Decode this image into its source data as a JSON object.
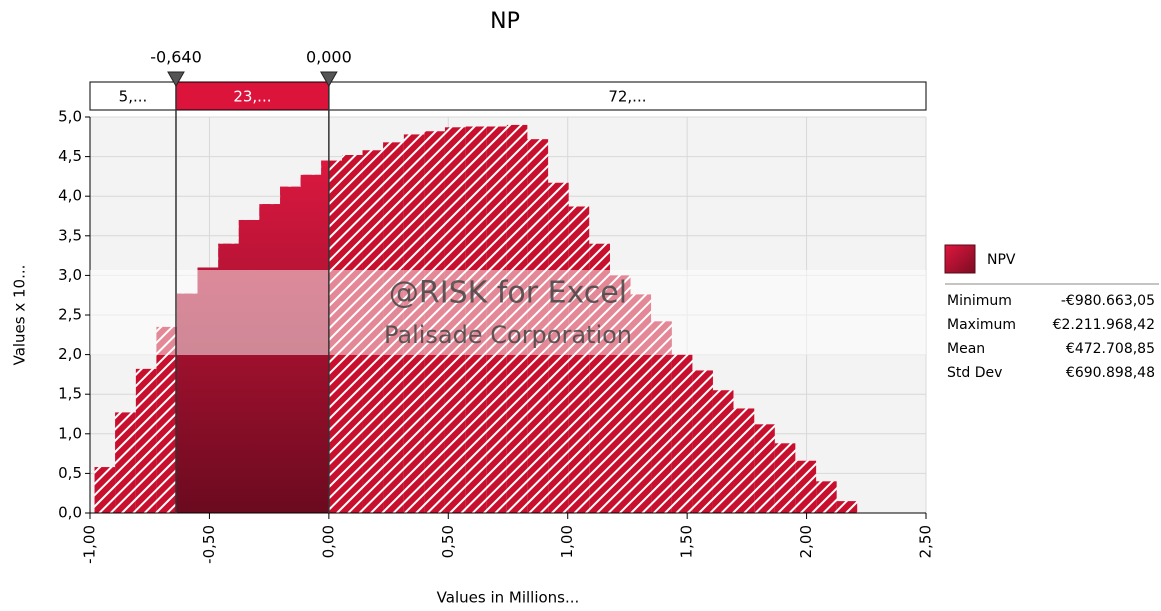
{
  "chart_data": {
    "type": "histogram",
    "title": "NP",
    "x_label": "Values in Millions...",
    "y_label": "Values x 10...",
    "bins": [
      -0.981,
      -0.895,
      -0.808,
      -0.722,
      -0.636,
      -0.55,
      -0.463,
      -0.377,
      -0.291,
      -0.204,
      -0.118,
      -0.032,
      0.055,
      0.141,
      0.227,
      0.314,
      0.4,
      0.486,
      0.573,
      0.659,
      0.745,
      0.831,
      0.918,
      1.004,
      1.09,
      1.177,
      1.263,
      1.349,
      1.436,
      1.522,
      1.608,
      1.694,
      1.781,
      1.867,
      1.953,
      2.04,
      2.126,
      2.212
    ],
    "values": [
      0.58,
      1.27,
      1.82,
      2.35,
      2.77,
      3.1,
      3.4,
      3.7,
      3.9,
      4.12,
      4.27,
      4.45,
      4.52,
      4.58,
      4.68,
      4.78,
      4.82,
      4.87,
      4.88,
      4.88,
      4.9,
      4.72,
      4.17,
      3.87,
      3.4,
      3.0,
      2.76,
      2.42,
      2.0,
      1.8,
      1.55,
      1.32,
      1.12,
      0.88,
      0.66,
      0.4,
      0.15
    ],
    "color": "#c8102e",
    "xlim": [
      -1,
      2.5
    ],
    "xticks": [
      {
        "value": -1,
        "label": "-1,00"
      },
      {
        "value": -0.5,
        "label": "-0,50"
      },
      {
        "value": 0,
        "label": "0,00"
      },
      {
        "value": 0.5,
        "label": "0,50"
      },
      {
        "value": 1,
        "label": "1,00"
      },
      {
        "value": 1.5,
        "label": "1,50"
      },
      {
        "value": 2,
        "label": "2,00"
      },
      {
        "value": 2.5,
        "label": "2,50"
      }
    ],
    "ylim": [
      0,
      5
    ],
    "yticks": [
      {
        "value": 0,
        "label": "0,0"
      },
      {
        "value": 0.5,
        "label": "0,5"
      },
      {
        "value": 1,
        "label": "1,0"
      },
      {
        "value": 1.5,
        "label": "1,5"
      },
      {
        "value": 2,
        "label": "2,0"
      },
      {
        "value": 2.5,
        "label": "2,5"
      },
      {
        "value": 3,
        "label": "3,0"
      },
      {
        "value": 3.5,
        "label": "3,5"
      },
      {
        "value": 4,
        "label": "4,0"
      },
      {
        "value": 4.5,
        "label": "4,5"
      },
      {
        "value": 5,
        "label": "5,0"
      }
    ],
    "grid": true,
    "delimiters": [
      {
        "value": -0.64,
        "label": "-0,640"
      },
      {
        "value": 0,
        "label": "0,000"
      }
    ],
    "region_labels": [
      "5,...",
      "23,...",
      "72,..."
    ],
    "watermark": [
      "@RISK for Excel",
      "Palisade Corporation"
    ],
    "legend": {
      "name": "NPV",
      "statistics": [
        {
          "label": "Minimum",
          "value": "-€980.663,05"
        },
        {
          "label": "Maximum",
          "value": "€2.211.968,42"
        },
        {
          "label": "Mean",
          "value": "€472.708,85"
        },
        {
          "label": "Std Dev",
          "value": "€690.898,48"
        }
      ]
    }
  }
}
